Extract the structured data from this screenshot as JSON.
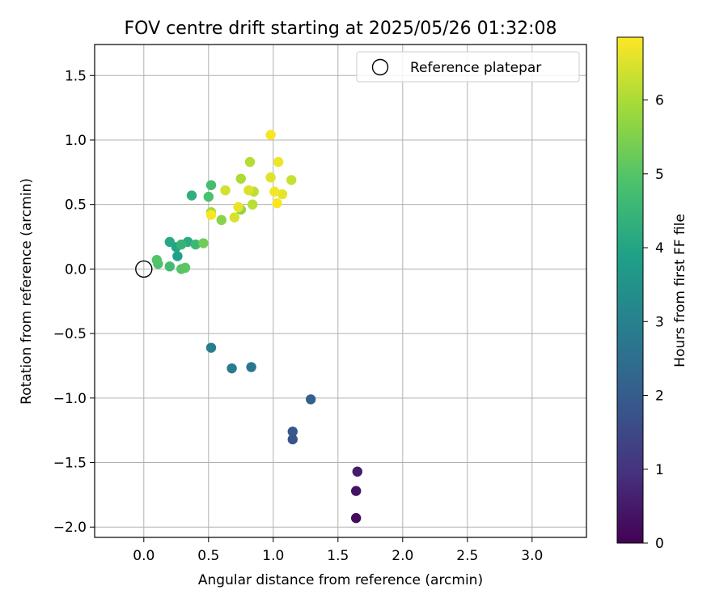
{
  "chart_data": {
    "type": "scatter",
    "title": "FOV centre drift starting at 2025/05/26 01:32:08",
    "xlabel": "Angular distance from reference (arcmin)",
    "ylabel": "Rotation from reference (arcmin)",
    "xlim": [
      -0.38,
      3.42
    ],
    "ylim": [
      -2.08,
      1.74
    ],
    "xticks": [
      0.0,
      0.5,
      1.0,
      1.5,
      2.0,
      2.5,
      3.0
    ],
    "xtick_labels": [
      "0.0",
      "0.5",
      "1.0",
      "1.5",
      "2.0",
      "2.5",
      "3.0"
    ],
    "yticks": [
      1.5,
      1.0,
      0.5,
      0.0,
      -0.5,
      -1.0,
      -1.5,
      -2.0
    ],
    "ytick_labels": [
      "1.5",
      "1.0",
      "0.5",
      "0.0",
      "−0.5",
      "−1.0",
      "−1.5",
      "−2.0"
    ],
    "grid": true,
    "legend": {
      "placement": "top-right",
      "entries": [
        "Reference platepar"
      ]
    },
    "reference_point": {
      "x": 0.0,
      "y": 0.0
    },
    "colorbar": {
      "label": "Hours from first FF file",
      "range": [
        0,
        6.85
      ],
      "ticks": [
        0,
        1,
        2,
        3,
        4,
        5,
        6
      ],
      "tick_labels": [
        "0",
        "1",
        "2",
        "3",
        "4",
        "5",
        "6"
      ],
      "colormap": "viridis"
    },
    "points": [
      {
        "x": 1.64,
        "y": -1.93,
        "h": 0.2
      },
      {
        "x": 1.64,
        "y": -1.72,
        "h": 0.35
      },
      {
        "x": 1.65,
        "y": -1.57,
        "h": 0.5
      },
      {
        "x": 1.15,
        "y": -1.32,
        "h": 1.8
      },
      {
        "x": 1.15,
        "y": -1.26,
        "h": 1.9
      },
      {
        "x": 1.29,
        "y": -1.01,
        "h": 2.1
      },
      {
        "x": 0.83,
        "y": -0.76,
        "h": 2.7
      },
      {
        "x": 0.68,
        "y": -0.77,
        "h": 2.85
      },
      {
        "x": 0.52,
        "y": -0.61,
        "h": 2.95
      },
      {
        "x": 0.26,
        "y": 0.1,
        "h": 3.9
      },
      {
        "x": 0.25,
        "y": 0.17,
        "h": 4.0
      },
      {
        "x": 0.2,
        "y": 0.21,
        "h": 4.1
      },
      {
        "x": 0.34,
        "y": 0.21,
        "h": 4.2
      },
      {
        "x": 0.37,
        "y": 0.57,
        "h": 4.3
      },
      {
        "x": 0.29,
        "y": 0.19,
        "h": 4.45
      },
      {
        "x": 0.4,
        "y": 0.19,
        "h": 4.55
      },
      {
        "x": 0.2,
        "y": 0.02,
        "h": 4.7
      },
      {
        "x": 0.52,
        "y": 0.65,
        "h": 4.75
      },
      {
        "x": 0.5,
        "y": 0.56,
        "h": 4.85
      },
      {
        "x": 0.11,
        "y": 0.04,
        "h": 4.9
      },
      {
        "x": 0.1,
        "y": 0.07,
        "h": 4.95
      },
      {
        "x": 0.29,
        "y": 0.0,
        "h": 5.0
      },
      {
        "x": 0.32,
        "y": 0.01,
        "h": 5.05
      },
      {
        "x": 0.46,
        "y": 0.2,
        "h": 5.3
      },
      {
        "x": 0.6,
        "y": 0.38,
        "h": 5.6
      },
      {
        "x": 0.75,
        "y": 0.46,
        "h": 5.7
      },
      {
        "x": 0.52,
        "y": 0.44,
        "h": 5.85
      },
      {
        "x": 0.75,
        "y": 0.7,
        "h": 6.0
      },
      {
        "x": 0.82,
        "y": 0.83,
        "h": 6.1
      },
      {
        "x": 0.84,
        "y": 0.5,
        "h": 6.15
      },
      {
        "x": 0.85,
        "y": 0.6,
        "h": 6.2
      },
      {
        "x": 1.14,
        "y": 0.69,
        "h": 6.3
      },
      {
        "x": 0.63,
        "y": 0.61,
        "h": 6.4
      },
      {
        "x": 0.7,
        "y": 0.4,
        "h": 6.45
      },
      {
        "x": 0.81,
        "y": 0.61,
        "h": 6.5
      },
      {
        "x": 0.98,
        "y": 0.71,
        "h": 6.55
      },
      {
        "x": 1.07,
        "y": 0.58,
        "h": 6.6
      },
      {
        "x": 0.73,
        "y": 0.48,
        "h": 6.65
      },
      {
        "x": 1.04,
        "y": 0.83,
        "h": 6.7
      },
      {
        "x": 1.01,
        "y": 0.6,
        "h": 6.75
      },
      {
        "x": 0.98,
        "y": 1.04,
        "h": 6.8
      },
      {
        "x": 1.03,
        "y": 0.51,
        "h": 6.8
      },
      {
        "x": 0.52,
        "y": 0.42,
        "h": 6.8
      }
    ]
  }
}
